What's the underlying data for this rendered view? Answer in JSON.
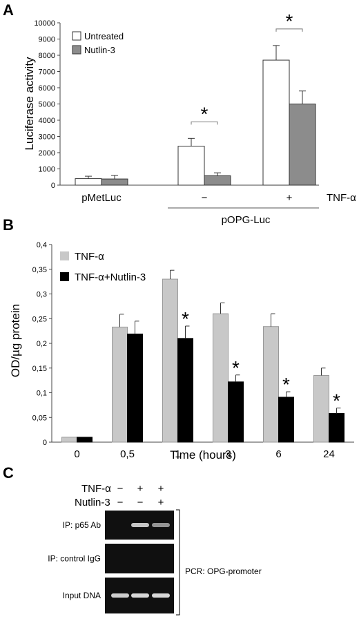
{
  "panels": {
    "a": "A",
    "b": "B",
    "c": "C"
  },
  "chart_data": [
    {
      "type": "bar",
      "panel": "A",
      "ylabel": "Luciferase activity",
      "ylim": [
        0,
        10000
      ],
      "yticks": [
        "0",
        "1000",
        "2000",
        "3000",
        "4000",
        "5000",
        "6000",
        "7000",
        "8000",
        "9000",
        "10000"
      ],
      "categories": [
        "pMetLuc",
        "−",
        "+"
      ],
      "group_label": "pOPG-Luc",
      "side_label": "TNF-α",
      "legend_position": "top-left",
      "series": [
        {
          "name": "Untreated",
          "color": "#ffffff",
          "values": [
            400,
            2400,
            7700
          ],
          "errors": [
            150,
            480,
            900
          ]
        },
        {
          "name": "Nutlin-3",
          "color": "#8c8c8c",
          "values": [
            380,
            580,
            5000
          ],
          "errors": [
            220,
            180,
            800
          ]
        }
      ],
      "significance": [
        "",
        "*",
        "*"
      ]
    },
    {
      "type": "bar",
      "panel": "B",
      "ylabel": "OD/µg protein",
      "xlabel": "Time (hours)",
      "ylim": [
        0,
        0.4
      ],
      "yticks": [
        "0",
        "0,05",
        "0,1",
        "0,15",
        "0,2",
        "0,25",
        "0,3",
        "0,35",
        "0,4"
      ],
      "categories": [
        "0",
        "0,5",
        "1",
        "3",
        "6",
        "24"
      ],
      "legend_position": "top-left",
      "series": [
        {
          "name": "TNF-α",
          "color": "#c8c8c8",
          "values": [
            0.01,
            0.233,
            0.33,
            0.26,
            0.234,
            0.135
          ],
          "errors": [
            0.002,
            0.026,
            0.018,
            0.022,
            0.026,
            0.015
          ]
        },
        {
          "name": "TNF-α+Nutlin-3",
          "color": "#000000",
          "values": [
            0.01,
            0.219,
            0.21,
            0.122,
            0.091,
            0.058
          ],
          "errors": [
            0.002,
            0.026,
            0.025,
            0.014,
            0.011,
            0.011
          ]
        }
      ],
      "significance": [
        "",
        "",
        "*",
        "*",
        "*",
        "*"
      ]
    }
  ],
  "gel": {
    "row_headers": [
      "TNF-α",
      "Nutlin-3"
    ],
    "tnf_signs": [
      "−",
      "+",
      "+"
    ],
    "nutlin_signs": [
      "−",
      "−",
      "+"
    ],
    "lanes": [
      {
        "label": "IP: p65 Ab",
        "intensities": [
          0.0,
          0.7,
          0.45
        ]
      },
      {
        "label": "IP: control IgG",
        "intensities": [
          0.0,
          0.0,
          0.0
        ]
      },
      {
        "label": "Input DNA",
        "intensities": [
          0.75,
          0.8,
          0.8
        ]
      }
    ],
    "bracket_label": "PCR: OPG-promoter"
  }
}
